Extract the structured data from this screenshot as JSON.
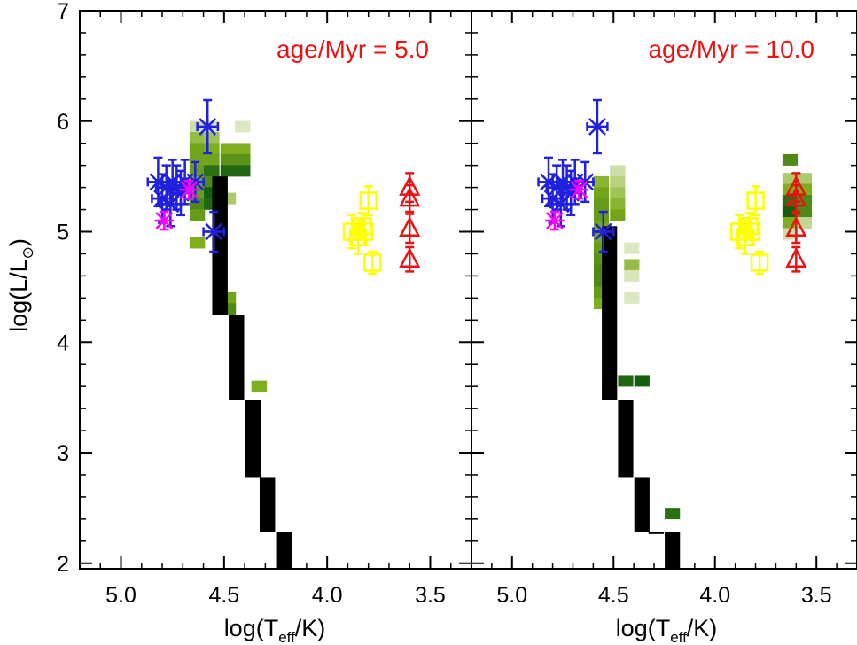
{
  "chart_data": {
    "type": "scatter",
    "panels": [
      {
        "annotation": "age/Myr = 5.0",
        "heatmap_cells": [
          {
            "x": 4.63,
            "y": 5.95,
            "intensity": 0.15
          },
          {
            "x": 4.63,
            "y": 5.85,
            "intensity": 0.4
          },
          {
            "x": 4.63,
            "y": 5.75,
            "intensity": 0.55
          },
          {
            "x": 4.63,
            "y": 5.65,
            "intensity": 0.55
          },
          {
            "x": 4.63,
            "y": 5.55,
            "intensity": 0.6
          },
          {
            "x": 4.63,
            "y": 5.45,
            "intensity": 0.55
          },
          {
            "x": 4.63,
            "y": 5.35,
            "intensity": 0.6
          },
          {
            "x": 4.63,
            "y": 5.25,
            "intensity": 0.7
          },
          {
            "x": 4.63,
            "y": 5.15,
            "intensity": 0.6
          },
          {
            "x": 4.63,
            "y": 4.9,
            "intensity": 0.5
          },
          {
            "x": 4.56,
            "y": 5.95,
            "intensity": 0.1
          },
          {
            "x": 4.56,
            "y": 5.85,
            "intensity": 0.35
          },
          {
            "x": 4.56,
            "y": 5.75,
            "intensity": 0.5
          },
          {
            "x": 4.56,
            "y": 5.65,
            "intensity": 0.55
          },
          {
            "x": 4.56,
            "y": 5.55,
            "intensity": 0.85
          },
          {
            "x": 4.56,
            "y": 5.45,
            "intensity": 0.7
          },
          {
            "x": 4.56,
            "y": 5.35,
            "intensity": 0.95
          },
          {
            "x": 4.56,
            "y": 5.25,
            "intensity": 0.9
          },
          {
            "x": 4.48,
            "y": 5.75,
            "intensity": 0.5
          },
          {
            "x": 4.48,
            "y": 5.65,
            "intensity": 0.65
          },
          {
            "x": 4.48,
            "y": 5.55,
            "intensity": 0.9
          },
          {
            "x": 4.48,
            "y": 5.3,
            "intensity": 0.3
          },
          {
            "x": 4.41,
            "y": 5.75,
            "intensity": 0.5
          },
          {
            "x": 4.41,
            "y": 5.65,
            "intensity": 0.65
          },
          {
            "x": 4.41,
            "y": 5.55,
            "intensity": 0.9
          },
          {
            "x": 4.41,
            "y": 5.95,
            "intensity": 0.08
          },
          {
            "x": 4.48,
            "y": 4.4,
            "intensity": 0.55
          },
          {
            "x": 4.48,
            "y": 4.3,
            "intensity": 0.7
          },
          {
            "x": 4.33,
            "y": 3.6,
            "intensity": 0.5
          }
        ],
        "track": [
          [
            4.52,
            5.5
          ],
          [
            4.52,
            4.25
          ],
          [
            4.44,
            4.25
          ],
          [
            4.44,
            3.48
          ],
          [
            4.36,
            3.48
          ],
          [
            4.36,
            2.78
          ],
          [
            4.29,
            2.78
          ],
          [
            4.29,
            2.28
          ],
          [
            4.21,
            2.28
          ],
          [
            4.21,
            1.95
          ]
        ]
      },
      {
        "annotation": "age/Myr = 10.0",
        "heatmap_cells": [
          {
            "x": 4.56,
            "y": 5.45,
            "intensity": 0.45
          },
          {
            "x": 4.56,
            "y": 5.35,
            "intensity": 0.55
          },
          {
            "x": 4.56,
            "y": 5.25,
            "intensity": 0.6
          },
          {
            "x": 4.56,
            "y": 5.15,
            "intensity": 0.6
          },
          {
            "x": 4.56,
            "y": 5.05,
            "intensity": 0.55
          },
          {
            "x": 4.56,
            "y": 4.95,
            "intensity": 0.55
          },
          {
            "x": 4.56,
            "y": 4.85,
            "intensity": 0.6
          },
          {
            "x": 4.56,
            "y": 4.75,
            "intensity": 0.65
          },
          {
            "x": 4.56,
            "y": 4.65,
            "intensity": 0.7
          },
          {
            "x": 4.56,
            "y": 4.55,
            "intensity": 0.7
          },
          {
            "x": 4.56,
            "y": 4.45,
            "intensity": 0.6
          },
          {
            "x": 4.56,
            "y": 4.35,
            "intensity": 0.5
          },
          {
            "x": 4.48,
            "y": 5.55,
            "intensity": 0.15
          },
          {
            "x": 4.48,
            "y": 5.45,
            "intensity": 0.25
          },
          {
            "x": 4.48,
            "y": 5.35,
            "intensity": 0.35
          },
          {
            "x": 4.48,
            "y": 5.25,
            "intensity": 0.45
          },
          {
            "x": 4.48,
            "y": 5.15,
            "intensity": 0.55
          },
          {
            "x": 4.41,
            "y": 4.85,
            "intensity": 0.08
          },
          {
            "x": 4.41,
            "y": 4.7,
            "intensity": 0.4
          },
          {
            "x": 4.41,
            "y": 4.6,
            "intensity": 0.1
          },
          {
            "x": 4.41,
            "y": 4.4,
            "intensity": 0.08
          },
          {
            "x": 3.63,
            "y": 5.65,
            "intensity": 0.7
          },
          {
            "x": 3.63,
            "y": 5.48,
            "intensity": 0.3
          },
          {
            "x": 3.63,
            "y": 5.38,
            "intensity": 0.5
          },
          {
            "x": 3.63,
            "y": 5.28,
            "intensity": 0.85
          },
          {
            "x": 3.63,
            "y": 5.18,
            "intensity": 0.95
          },
          {
            "x": 3.63,
            "y": 5.08,
            "intensity": 0.5
          },
          {
            "x": 3.63,
            "y": 4.98,
            "intensity": 0.15
          },
          {
            "x": 3.56,
            "y": 5.48,
            "intensity": 0.3
          },
          {
            "x": 3.56,
            "y": 5.38,
            "intensity": 0.5
          },
          {
            "x": 3.56,
            "y": 5.28,
            "intensity": 0.7
          },
          {
            "x": 3.56,
            "y": 5.18,
            "intensity": 0.7
          },
          {
            "x": 3.56,
            "y": 5.08,
            "intensity": 0.2
          },
          {
            "x": 4.44,
            "y": 3.65,
            "intensity": 0.9
          },
          {
            "x": 4.36,
            "y": 3.65,
            "intensity": 0.95
          },
          {
            "x": 4.52,
            "y": 3.55,
            "intensity": 0.85
          },
          {
            "x": 4.21,
            "y": 2.45,
            "intensity": 0.85
          }
        ],
        "track": [
          [
            4.52,
            5.05
          ],
          [
            4.52,
            3.48
          ],
          [
            4.44,
            3.48
          ],
          [
            4.44,
            2.78
          ],
          [
            4.36,
            2.78
          ],
          [
            4.36,
            2.28
          ],
          [
            4.29,
            2.28
          ],
          [
            4.29,
            2.28
          ],
          [
            4.21,
            2.28
          ],
          [
            4.21,
            1.95
          ]
        ]
      }
    ],
    "series": [
      {
        "color": "#2020e0",
        "marker": "asterisk-x",
        "points": [
          {
            "x": 4.82,
            "y": 5.45,
            "xerr": 0.05,
            "yerr": 0.22
          },
          {
            "x": 4.8,
            "y": 5.3,
            "xerr": 0.05,
            "yerr": 0.22
          },
          {
            "x": 4.78,
            "y": 5.4,
            "xerr": 0.05,
            "yerr": 0.2
          },
          {
            "x": 4.76,
            "y": 5.25,
            "xerr": 0.05,
            "yerr": 0.2
          },
          {
            "x": 4.75,
            "y": 5.45,
            "xerr": 0.05,
            "yerr": 0.2
          },
          {
            "x": 4.73,
            "y": 5.4,
            "xerr": 0.05,
            "yerr": 0.2
          },
          {
            "x": 4.71,
            "y": 5.35,
            "xerr": 0.05,
            "yerr": 0.2
          },
          {
            "x": 4.69,
            "y": 5.45,
            "xerr": 0.05,
            "yerr": 0.2
          },
          {
            "x": 4.64,
            "y": 5.45,
            "xerr": 0.04,
            "yerr": 0.18
          },
          {
            "x": 4.58,
            "y": 5.95,
            "xerr": 0.05,
            "yerr": 0.24
          },
          {
            "x": 4.55,
            "y": 5.0,
            "xerr": 0.05,
            "yerr": 0.18
          }
        ]
      },
      {
        "color": "#ff00ff",
        "marker": "asterisk",
        "points": [
          {
            "x": 4.79,
            "y": 5.1,
            "xerr": 0.0,
            "yerr": 0.08
          },
          {
            "x": 4.67,
            "y": 5.38,
            "xerr": 0.0,
            "yerr": 0.08
          }
        ]
      },
      {
        "color": "#ffff00",
        "marker": "square",
        "points": [
          {
            "x": 3.88,
            "y": 5.0,
            "xerr": 0.0,
            "yerr": 0.15
          },
          {
            "x": 3.85,
            "y": 4.95,
            "xerr": 0.0,
            "yerr": 0.15
          },
          {
            "x": 3.83,
            "y": 5.05,
            "xerr": 0.0,
            "yerr": 0.12
          },
          {
            "x": 3.82,
            "y": 5.0,
            "xerr": 0.0,
            "yerr": 0.12
          },
          {
            "x": 3.8,
            "y": 5.28,
            "xerr": 0.0,
            "yerr": 0.13
          },
          {
            "x": 3.78,
            "y": 4.72,
            "xerr": 0.0,
            "yerr": 0.1
          }
        ]
      },
      {
        "color": "#ee1111",
        "marker": "triangle",
        "points": [
          {
            "x": 3.6,
            "y": 5.4,
            "xerr": 0.0,
            "yerr": 0.13
          },
          {
            "x": 3.6,
            "y": 5.3,
            "xerr": 0.0,
            "yerr": 0.12
          },
          {
            "x": 3.6,
            "y": 5.03,
            "xerr": 0.0,
            "yerr": 0.13
          },
          {
            "x": 3.6,
            "y": 4.75,
            "xerr": 0.0,
            "yerr": 0.11
          }
        ]
      }
    ],
    "xlim": [
      5.2,
      3.3
    ],
    "ylim": [
      1.95,
      7.0
    ],
    "xticks": [
      5.0,
      4.5,
      4.0,
      3.5
    ],
    "xtick_labels": [
      "5.0",
      "4.5",
      "4.0",
      "3.5"
    ],
    "yticks": [
      2,
      3,
      4,
      5,
      6,
      7
    ],
    "ytick_labels": [
      "2",
      "3",
      "4",
      "5",
      "6",
      "7"
    ],
    "xlabel": "log(T",
    "xlabel_sub": "eff",
    "xlabel_end": "/K)",
    "ylabel": "log(L/L",
    "ylabel_sub": "⊙",
    "ylabel_end": ")",
    "grid": false,
    "colors": {
      "track": "#000000",
      "annotation": "#ee1111",
      "heat_light": "#eef3e0",
      "heat_dark": "#0f5a0f"
    }
  }
}
